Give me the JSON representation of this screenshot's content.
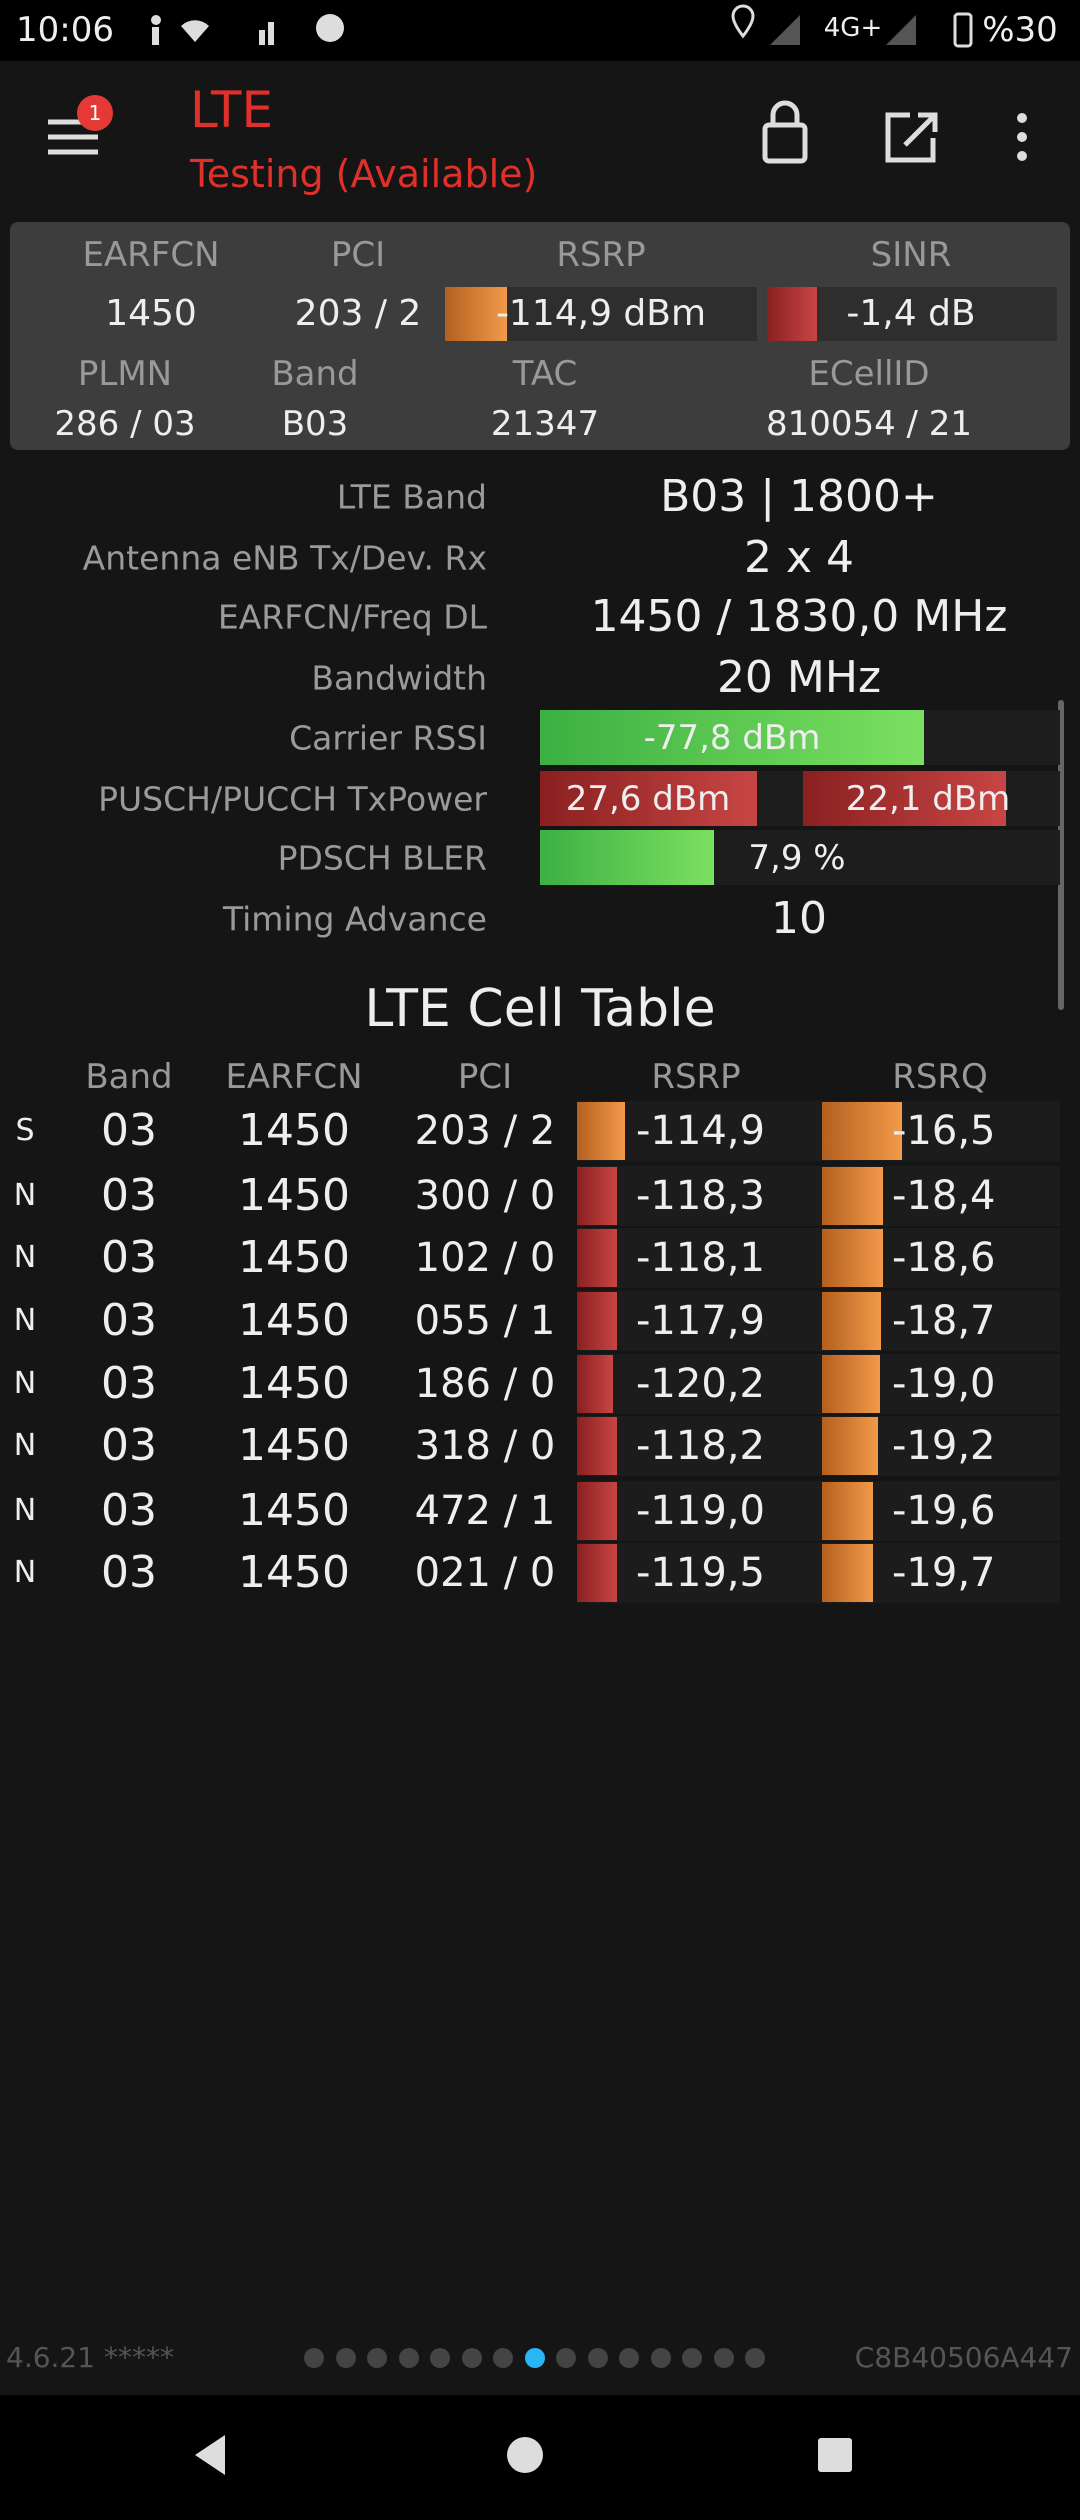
{
  "status_bar": {
    "time": "10:06",
    "network": "4G+",
    "battery": "%30"
  },
  "header": {
    "title": "LTE",
    "subtitle": "Testing (Available)",
    "badge": "1"
  },
  "summary": {
    "labels_top": [
      "EARFCN",
      "PCI",
      "RSRP",
      "SINR"
    ],
    "values_top": [
      "1450",
      "203 / 2",
      "-114,9 dBm",
      "-1,4 dB"
    ],
    "labels_bottom": [
      "PLMN",
      "Band",
      "TAC",
      "ECellID"
    ],
    "values_bottom": [
      "286 / 03",
      "B03",
      "21347",
      "810054 / 21"
    ]
  },
  "details": [
    [
      "LTE Band",
      "B03 | 1800+"
    ],
    [
      "Antenna eNB Tx/Dev. Rx",
      "2 x 4"
    ],
    [
      "EARFCN/Freq DL",
      "1450 / 1830,0 MHz"
    ],
    [
      "Bandwidth",
      "20 MHz"
    ],
    [
      "Carrier RSSI",
      "-77,8 dBm"
    ],
    [
      "PUSCH/PUCCH TxPower",
      "27,6 dBm",
      "22,1 dBm"
    ],
    [
      "PDSCH BLER",
      "7,9 %"
    ],
    [
      "Timing Advance",
      "10"
    ]
  ],
  "cell_table": {
    "title": "LTE Cell Table",
    "columns": [
      "Band",
      "EARFCN",
      "PCI",
      "RSRP",
      "RSRQ"
    ],
    "rows": [
      [
        "S",
        "03",
        "1450",
        "203 / 2",
        "-114,9",
        "-16,5"
      ],
      [
        "N",
        "03",
        "1450",
        "300 / 0",
        "-118,3",
        "-18,4"
      ],
      [
        "N",
        "03",
        "1450",
        "102 / 0",
        "-118,1",
        "-18,6"
      ],
      [
        "N",
        "03",
        "1450",
        "055 / 1",
        "-117,9",
        "-18,7"
      ],
      [
        "N",
        "03",
        "1450",
        "186 / 0",
        "-120,2",
        "-19,0"
      ],
      [
        "N",
        "03",
        "1450",
        "318 / 0",
        "-118,2",
        "-19,2"
      ],
      [
        "N",
        "03",
        "1450",
        "472 / 1",
        "-119,0",
        "-19,6"
      ],
      [
        "N",
        "03",
        "1450",
        "021 / 0",
        "-119,5",
        "-19,7"
      ]
    ]
  },
  "footer": {
    "version": "4.6.21 *****",
    "device_id": "C8B40506A447"
  }
}
